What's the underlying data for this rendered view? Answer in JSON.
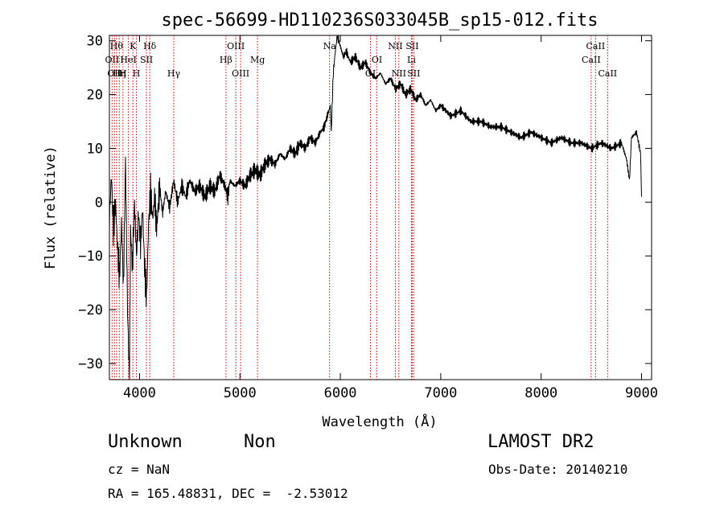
{
  "chart_data": {
    "type": "line",
    "title": "spec-56699-HD110236S033045B_sp15-012.fits",
    "xlabel": "Wavelength (Å)",
    "ylabel": "Flux (relative)",
    "xlim": [
      3700,
      9100
    ],
    "ylim": [
      -33,
      31
    ],
    "xticks": [
      4000,
      5000,
      6000,
      7000,
      8000,
      9000
    ],
    "yticks": [
      -30,
      -20,
      -10,
      0,
      10,
      20,
      30
    ],
    "line_color": "#000000",
    "marker_color": "#cc0000",
    "series": [
      {
        "points": [
          [
            3700,
            -3
          ],
          [
            3720,
            5
          ],
          [
            3740,
            -5
          ],
          [
            3760,
            0
          ],
          [
            3780,
            -8
          ],
          [
            3800,
            -14
          ],
          [
            3820,
            -4
          ],
          [
            3840,
            -16
          ],
          [
            3860,
            8
          ],
          [
            3880,
            -20
          ],
          [
            3900,
            -33
          ],
          [
            3910,
            -5
          ],
          [
            3930,
            -12
          ],
          [
            3950,
            0
          ],
          [
            3970,
            -10
          ],
          [
            3990,
            -2
          ],
          [
            4010,
            -8
          ],
          [
            4030,
            -1
          ],
          [
            4050,
            -12
          ],
          [
            4070,
            -18
          ],
          [
            4090,
            -4
          ],
          [
            4110,
            2
          ],
          [
            4130,
            -3
          ],
          [
            4150,
            1
          ],
          [
            4170,
            -5
          ],
          [
            4200,
            3
          ],
          [
            4230,
            -2
          ],
          [
            4260,
            2
          ],
          [
            4300,
            -1
          ],
          [
            4340,
            4
          ],
          [
            4380,
            0
          ],
          [
            4420,
            3
          ],
          [
            4460,
            1
          ],
          [
            4500,
            4
          ],
          [
            4550,
            2
          ],
          [
            4600,
            3
          ],
          [
            4650,
            1
          ],
          [
            4700,
            3
          ],
          [
            4750,
            2
          ],
          [
            4800,
            5
          ],
          [
            4850,
            3
          ],
          [
            4880,
            1
          ],
          [
            4900,
            4
          ],
          [
            4950,
            3
          ],
          [
            5000,
            4
          ],
          [
            5050,
            3
          ],
          [
            5100,
            5
          ],
          [
            5150,
            6
          ],
          [
            5200,
            5
          ],
          [
            5250,
            7
          ],
          [
            5300,
            8
          ],
          [
            5350,
            7
          ],
          [
            5400,
            9
          ],
          [
            5450,
            8
          ],
          [
            5500,
            10
          ],
          [
            5550,
            9
          ],
          [
            5600,
            11
          ],
          [
            5650,
            10
          ],
          [
            5700,
            12
          ],
          [
            5750,
            11
          ],
          [
            5800,
            13
          ],
          [
            5840,
            14
          ],
          [
            5870,
            16
          ],
          [
            5900,
            18
          ],
          [
            5910,
            13
          ],
          [
            5930,
            24
          ],
          [
            5950,
            28
          ],
          [
            5970,
            31
          ],
          [
            6000,
            29
          ],
          [
            6030,
            27
          ],
          [
            6060,
            28
          ],
          [
            6100,
            26
          ],
          [
            6150,
            27
          ],
          [
            6200,
            25
          ],
          [
            6250,
            26
          ],
          [
            6300,
            24
          ],
          [
            6350,
            23
          ],
          [
            6400,
            24
          ],
          [
            6450,
            22
          ],
          [
            6500,
            23
          ],
          [
            6550,
            21
          ],
          [
            6600,
            22
          ],
          [
            6650,
            20
          ],
          [
            6700,
            21
          ],
          [
            6750,
            19
          ],
          [
            6800,
            20
          ],
          [
            6850,
            18
          ],
          [
            6900,
            19
          ],
          [
            6950,
            17
          ],
          [
            7000,
            18
          ],
          [
            7100,
            16
          ],
          [
            7200,
            17
          ],
          [
            7300,
            15
          ],
          [
            7400,
            15
          ],
          [
            7500,
            14
          ],
          [
            7600,
            14
          ],
          [
            7700,
            13
          ],
          [
            7800,
            12
          ],
          [
            7900,
            13
          ],
          [
            8000,
            12
          ],
          [
            8100,
            11
          ],
          [
            8200,
            12
          ],
          [
            8300,
            11
          ],
          [
            8400,
            11
          ],
          [
            8500,
            10
          ],
          [
            8600,
            11
          ],
          [
            8700,
            10
          ],
          [
            8800,
            11
          ],
          [
            8850,
            8
          ],
          [
            8880,
            4
          ],
          [
            8900,
            12
          ],
          [
            8950,
            13
          ],
          [
            8990,
            9
          ],
          [
            9000,
            1
          ]
        ]
      }
    ],
    "line_markers": [
      {
        "x": 3727,
        "label": "OII",
        "row": 2
      },
      {
        "x": 3750,
        "label": "OII",
        "row": 3
      },
      {
        "x": 3771,
        "label": "Hθ",
        "row": 1
      },
      {
        "x": 3798,
        "label": "Hη",
        "row": 3
      },
      {
        "x": 3835,
        "label": "H",
        "row": 3
      },
      {
        "x": 3889,
        "label": "HeI",
        "row": 2
      },
      {
        "x": 3934,
        "label": "K",
        "row": 1
      },
      {
        "x": 3969,
        "label": "H",
        "row": 3
      },
      {
        "x": 4069,
        "label": "SII",
        "row": 2
      },
      {
        "x": 4102,
        "label": "Hδ",
        "row": 1
      },
      {
        "x": 4341,
        "label": "Hγ",
        "row": 3
      },
      {
        "x": 4861,
        "label": "Hβ",
        "row": 2
      },
      {
        "x": 4959,
        "label": "OIII",
        "row": 1
      },
      {
        "x": 5007,
        "label": "OIII",
        "row": 3
      },
      {
        "x": 5175,
        "label": "Mg",
        "row": 2
      },
      {
        "x": 5893,
        "label": "Na",
        "row": 1
      },
      {
        "x": 6300,
        "label": "OI",
        "row": 3
      },
      {
        "x": 6364,
        "label": "OI",
        "row": 2
      },
      {
        "x": 6548,
        "label": "NII",
        "row": 1
      },
      {
        "x": 6583,
        "label": "NII",
        "row": 3
      },
      {
        "x": 6708,
        "label": "Li",
        "row": 2
      },
      {
        "x": 6716,
        "label": "SII",
        "row": 1
      },
      {
        "x": 6731,
        "label": "SII",
        "row": 3
      },
      {
        "x": 8498,
        "label": "CaII",
        "row": 2
      },
      {
        "x": 8542,
        "label": "CaII",
        "row": 1
      },
      {
        "x": 8662,
        "label": "CaII",
        "row": 3
      }
    ]
  },
  "info": {
    "object_class": "Unknown",
    "subclass": "Non",
    "survey": "LAMOST DR2",
    "cz": "cz = NaN",
    "obs_date": "Obs-Date: 20140210",
    "coords": "RA = 165.48831, DEC =  -2.53012"
  }
}
